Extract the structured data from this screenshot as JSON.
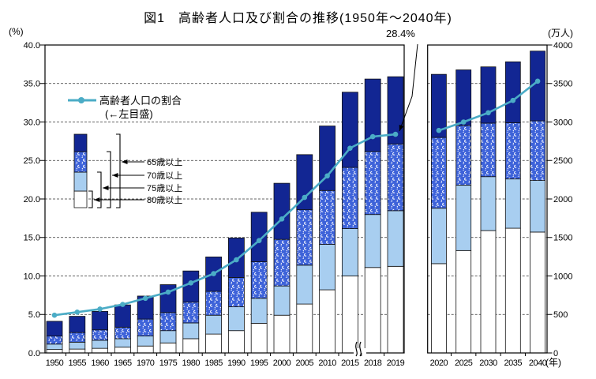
{
  "title": "図1　高齢者人口及び割合の推移(1950年～2040年)",
  "axis_left_unit": "(%)",
  "axis_right_unit": "(万人)",
  "axis_x_unit": "(年)",
  "annotation_label": "28.4%",
  "legend": {
    "line_label": "高齢者人口の割合",
    "line_sublabel": "(←左目盛)",
    "age_groups": [
      "65歳以上",
      "70歳以上",
      "75歳以上",
      "80歳以上"
    ]
  },
  "colors": {
    "navy_65_69": "#122693",
    "dotted_70_74": "#3D62D9",
    "light_75_79": "#A8CEF0",
    "white_80plus": "#FFFFFF",
    "ratio_line": "#4BACC6",
    "grid": "#333333",
    "frame": "#000000"
  },
  "chart_data": {
    "type": "bar",
    "subtype": "stacked bars (population, right axis) + line (share of total population, left axis), broken x-axis with two panels",
    "title": "図1　高齢者人口及び割合の推移(1950年～2040年)",
    "left_axis": {
      "unit": "(%)",
      "min": 0,
      "max": 40,
      "tick_step": 5,
      "ticks": [
        "0.0",
        "5.0",
        "10.0",
        "15.0",
        "20.0",
        "25.0",
        "30.0",
        "35.0",
        "40.0"
      ]
    },
    "right_axis": {
      "unit": "(万人)",
      "min": 0,
      "max": 4000,
      "tick_step": 500,
      "ticks": [
        "0",
        "500",
        "1000",
        "1500",
        "2000",
        "2500",
        "3000",
        "3500",
        "4000"
      ]
    },
    "x_unit": "(年)",
    "grid": "dashed horizontal lines every 5% / 500万人",
    "legend_position": "upper left inside plot",
    "axis_break_between": [
      "2015",
      "2018"
    ],
    "panel2_start_index": 16,
    "years": [
      "1950",
      "1955",
      "1960",
      "1965",
      "1970",
      "1975",
      "1980",
      "1985",
      "1990",
      "1995",
      "2000",
      "2005",
      "2010",
      "2015",
      "2018",
      "2019",
      "2020",
      "2025",
      "2030",
      "2035",
      "2040"
    ],
    "series_note": "Population values in 万人 (10k persons), cumulative age groups: 65歳以上 is total bar height; bars stack white=80歳以上, lightblue=75-79, dotted=70-74, navy=65-69. share_pct is the teal line on the left % scale.",
    "series": {
      "pop_65plus": [
        411,
        476,
        540,
        624,
        739,
        887,
        1065,
        1247,
        1493,
        1828,
        2204,
        2576,
        2948,
        3387,
        3558,
        3588,
        3619,
        3677,
        3716,
        3782,
        3921
      ],
      "pop_70plus": [
        220,
        265,
        300,
        335,
        440,
        525,
        660,
        800,
        980,
        1185,
        1475,
        1860,
        2110,
        2410,
        2618,
        2715,
        2800,
        2955,
        2985,
        2990,
        3015
      ],
      "pop_75plus": [
        115,
        140,
        165,
        185,
        220,
        290,
        390,
        490,
        600,
        710,
        870,
        1140,
        1410,
        1615,
        1798,
        1848,
        1880,
        2180,
        2290,
        2260,
        2240
      ],
      "pop_80plus": [
        45,
        50,
        60,
        75,
        90,
        130,
        185,
        245,
        290,
        385,
        490,
        635,
        820,
        1000,
        1110,
        1125,
        1160,
        1330,
        1590,
        1620,
        1570
      ],
      "share_pct_65plus": [
        4.9,
        5.3,
        5.7,
        6.3,
        7.1,
        7.9,
        9.1,
        10.3,
        12.1,
        14.6,
        17.4,
        20.2,
        23.0,
        26.6,
        28.1,
        28.4,
        28.9,
        30.0,
        31.2,
        32.8,
        35.3
      ]
    },
    "annotations": [
      {
        "text": "28.4%",
        "target_year": "2019",
        "target_value_pct": 28.4
      }
    ]
  }
}
